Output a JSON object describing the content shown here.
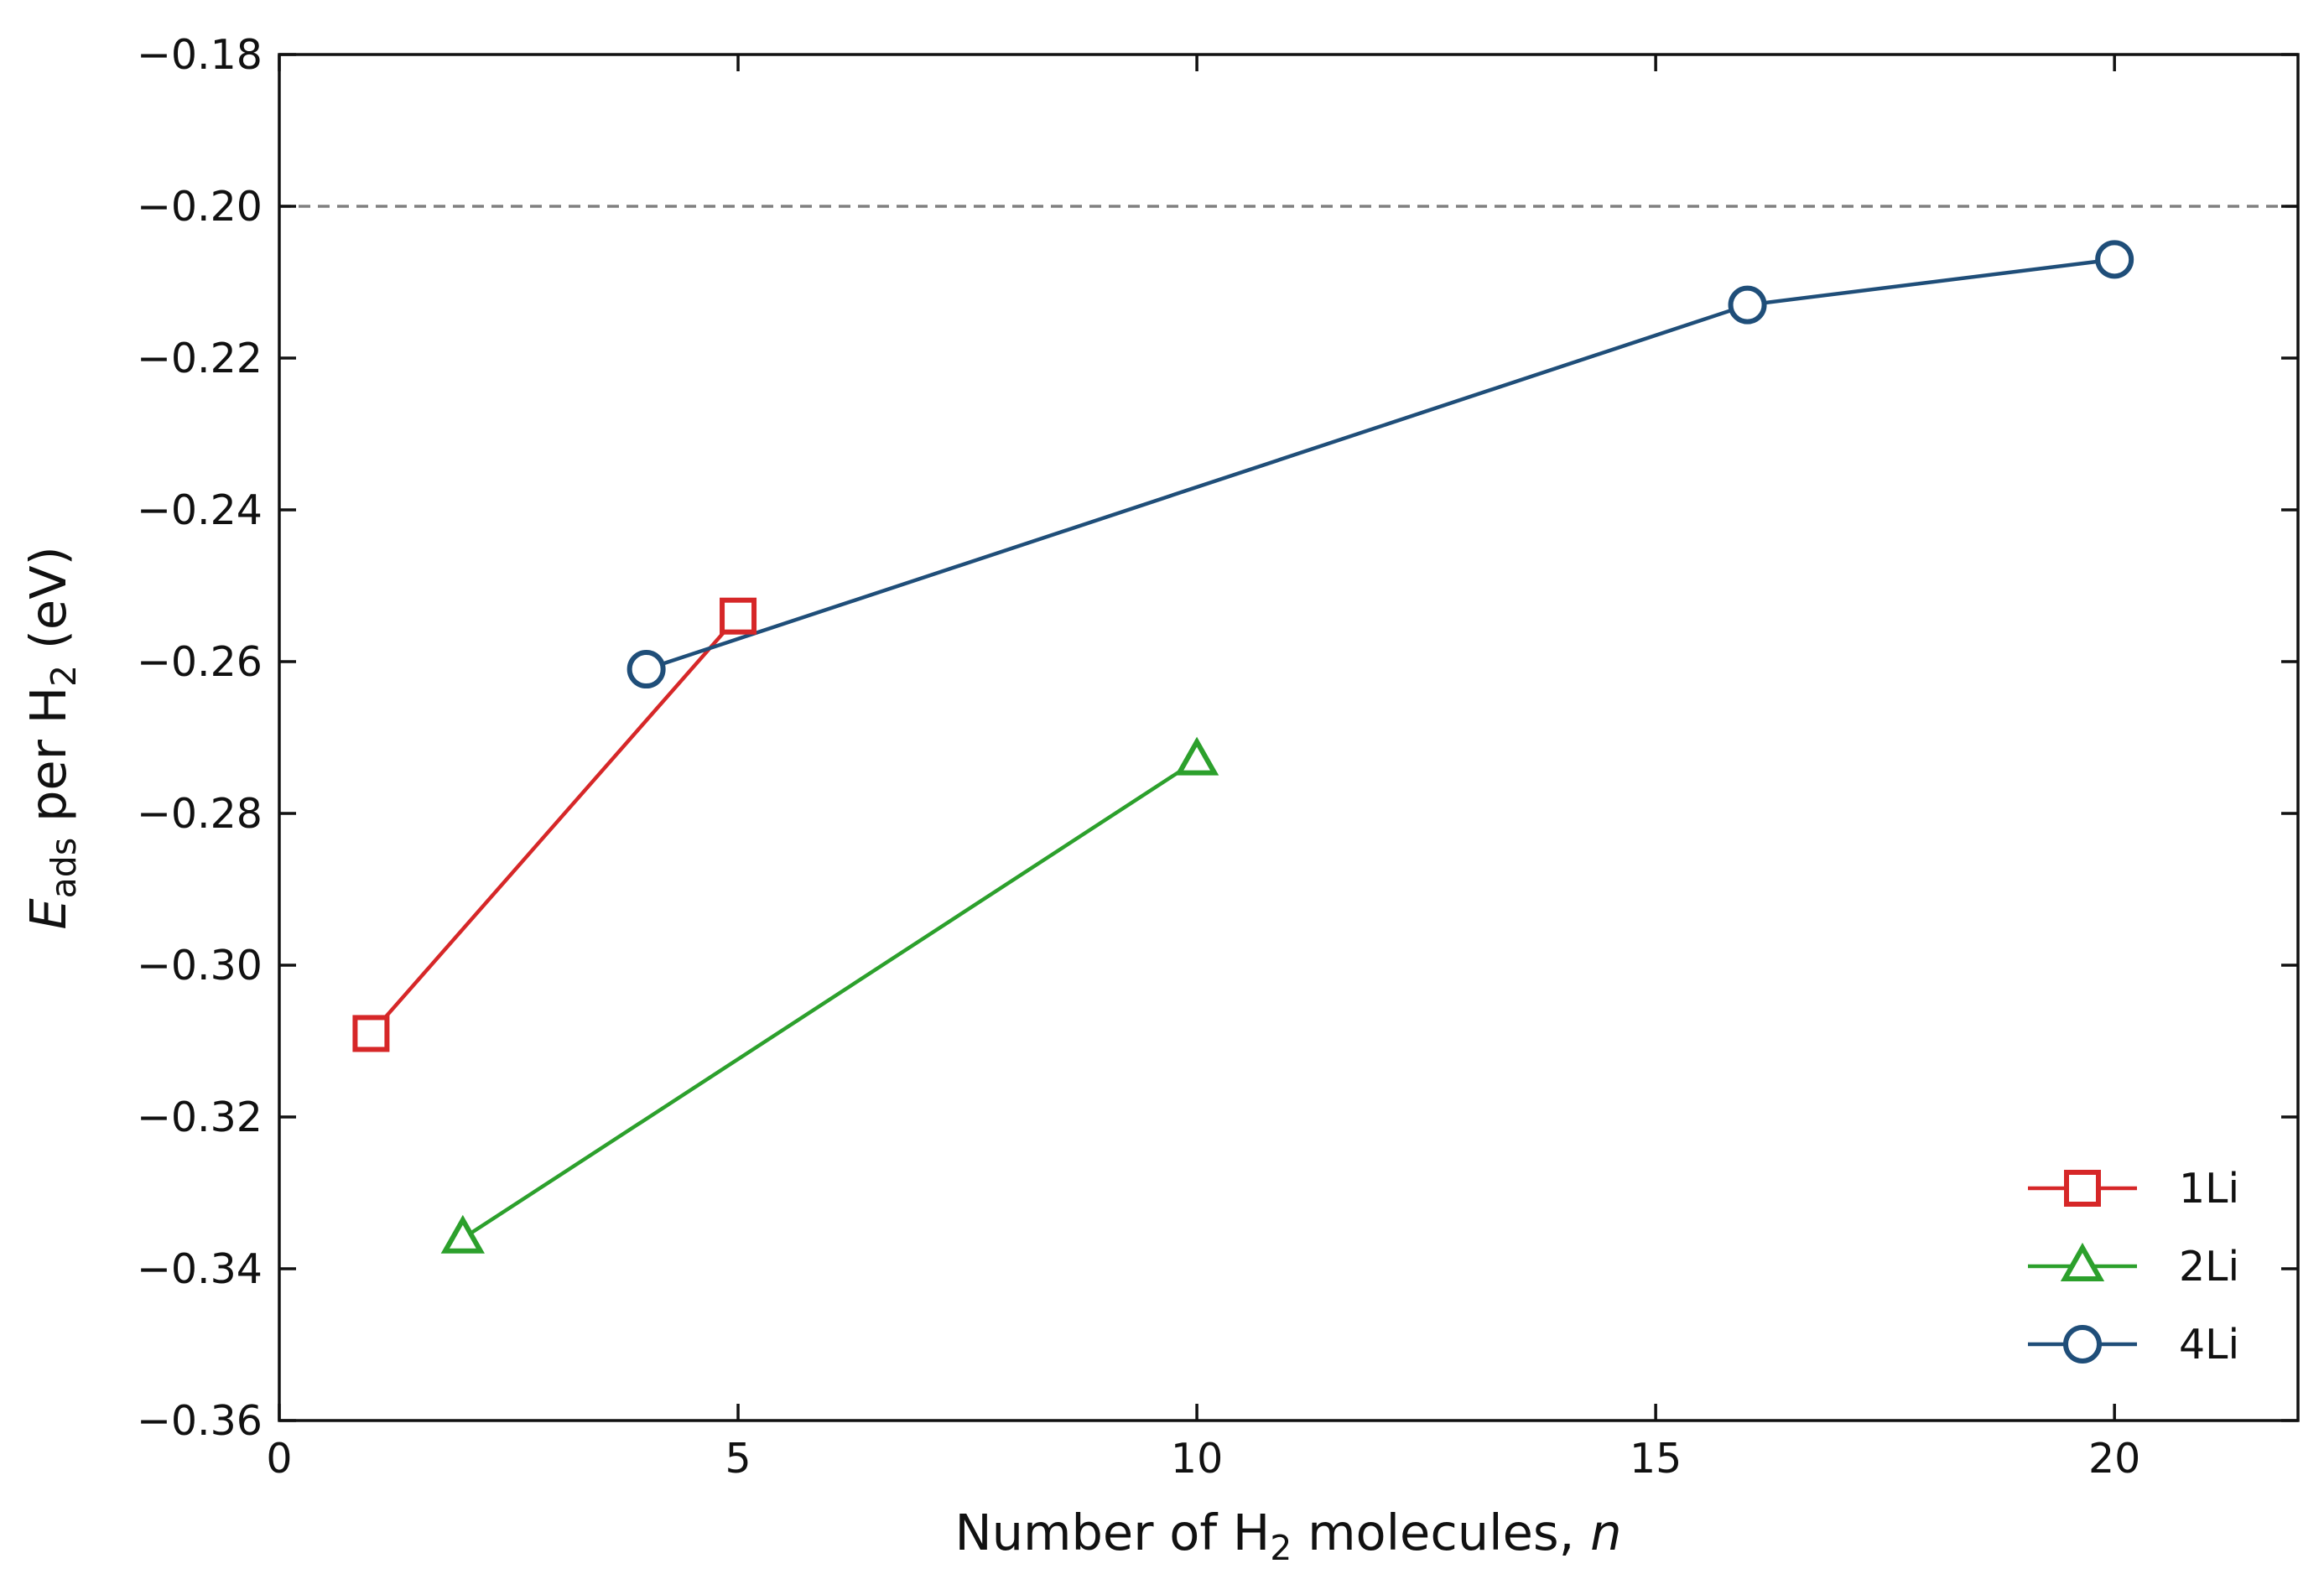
{
  "chart_data": {
    "type": "line",
    "xlabel": {
      "prefix": "Number of H",
      "sub": "2",
      "suffix": " molecules, ",
      "italic": "n"
    },
    "ylabel": {
      "italic": "E",
      "sub": "ads",
      "mid": " per H",
      "sub2": "2",
      "suffix": " (eV)"
    },
    "xlim": [
      0,
      22
    ],
    "ylim": [
      -0.36,
      -0.18
    ],
    "xticks": [
      0,
      5,
      10,
      15,
      20
    ],
    "xtick_labels": [
      "0",
      "5",
      "10",
      "15",
      "20"
    ],
    "yticks": [
      -0.36,
      -0.34,
      -0.32,
      -0.3,
      -0.28,
      -0.26,
      -0.24,
      -0.22,
      -0.2,
      -0.18
    ],
    "ytick_labels": [
      "−0.36",
      "−0.34",
      "−0.32",
      "−0.30",
      "−0.28",
      "−0.26",
      "−0.24",
      "−0.22",
      "−0.20",
      "−0.18"
    ],
    "reference_line": {
      "y": -0.2,
      "style": "dashed",
      "color": "#808080"
    },
    "legend_position": "bottom-right",
    "grid": false,
    "series": [
      {
        "name": "1Li",
        "marker": "square",
        "color": "#d62728",
        "x": [
          1,
          5
        ],
        "y": [
          -0.309,
          -0.254
        ]
      },
      {
        "name": "2Li",
        "marker": "triangle",
        "color": "#2ca02c",
        "x": [
          2,
          10
        ],
        "y": [
          -0.336,
          -0.273
        ]
      },
      {
        "name": "4Li",
        "marker": "circle",
        "color": "#1f4e79",
        "x": [
          4,
          16,
          20
        ],
        "y": [
          -0.261,
          -0.213,
          -0.207
        ]
      }
    ]
  }
}
